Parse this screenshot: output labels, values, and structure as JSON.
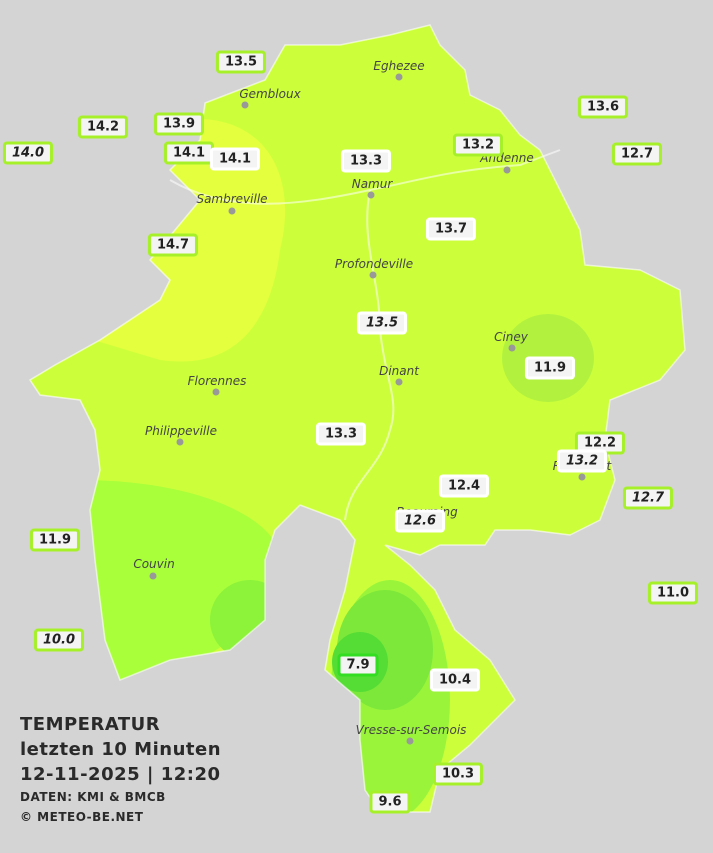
{
  "caption": {
    "title": "TEMPERATUR",
    "period": "letzten 10 Minuten",
    "datetime": "12-11-2025  |  12:20",
    "source": "DATEN: KMI & BMCB",
    "copyright": "© METEO-BE.NET"
  },
  "towns": [
    "Eghezee",
    "Gembloux",
    "Andenne",
    "Namur",
    "Sambreville",
    "Profondeville",
    "Ciney",
    "Dinant",
    "Florennes",
    "Philippeville",
    "Beauraing",
    "Rochefort",
    "Couvin",
    "Vresse-sur-Semois"
  ],
  "stations": [
    {
      "label": "13.5",
      "border": "#a6f02a"
    },
    {
      "label": "14.2",
      "border": "#a6f02a"
    },
    {
      "label": "13.9",
      "border": "#a6f02a"
    },
    {
      "label": "14.0",
      "border": "#a6f02a",
      "italic": true
    },
    {
      "label": "14.1",
      "border": "#a6f02a"
    },
    {
      "label": "14.1",
      "border": "#ffffff"
    },
    {
      "label": "13.3",
      "border": "#ffffff"
    },
    {
      "label": "13.2",
      "border": "#a6f02a"
    },
    {
      "label": "13.6",
      "border": "#a6f02a"
    },
    {
      "label": "12.7",
      "border": "#a6f02a"
    },
    {
      "label": "13.7",
      "border": "#ffffff"
    },
    {
      "label": "14.7",
      "border": "#a6f02a"
    },
    {
      "label": "13.5",
      "border": "#ffffff",
      "italic": true
    },
    {
      "label": "11.9",
      "border": "#ffffff"
    },
    {
      "label": "13.3",
      "border": "#ffffff"
    },
    {
      "label": "12.2",
      "border": "#a6f02a"
    },
    {
      "label": "13.2",
      "border": "#ffffff",
      "italic": true
    },
    {
      "label": "12.4",
      "border": "#ffffff"
    },
    {
      "label": "12.7",
      "border": "#a6f02a",
      "italic": true
    },
    {
      "label": "12.6",
      "border": "#ffffff",
      "italic": true
    },
    {
      "label": "11.9",
      "border": "#a6f02a"
    },
    {
      "label": "11.0",
      "border": "#a6f02a"
    },
    {
      "label": "10.0",
      "border": "#a6f02a",
      "italic": true
    },
    {
      "label": "7.9",
      "border": "#33dd22"
    },
    {
      "label": "10.4",
      "border": "#ffffff"
    },
    {
      "label": "10.3",
      "border": "#a6f02a"
    },
    {
      "label": "9.6",
      "border": "#a6f02a"
    }
  ]
}
